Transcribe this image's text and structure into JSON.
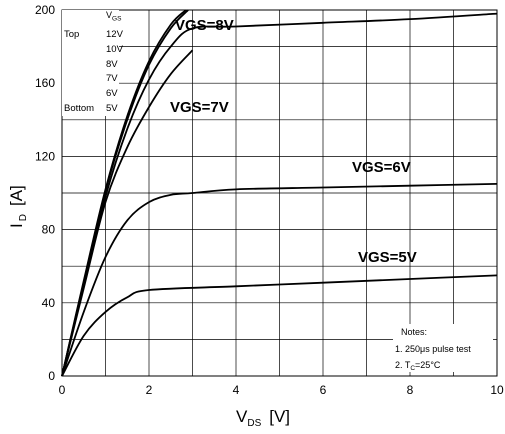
{
  "chart_data": {
    "type": "line",
    "xlabel": {
      "main": "V",
      "sub": "DS",
      "unit": "[V]"
    },
    "ylabel": {
      "main": "I",
      "sub": "D",
      "unit": "[A]"
    },
    "xlim": [
      0,
      10
    ],
    "ylim": [
      0,
      200
    ],
    "xticks": [
      0,
      2,
      4,
      6,
      8,
      10
    ],
    "yticks": [
      0,
      40,
      80,
      120,
      160,
      200
    ],
    "grid": true,
    "legend": {
      "header_main": "V",
      "header_sub": "GS",
      "top_label": "Top",
      "bottom_label": "Bottom",
      "entries": [
        "12V",
        "10V",
        "8V",
        "7V",
        "6V",
        "5V"
      ]
    },
    "annotations": [
      "VGS=8V",
      "VGS=7V",
      "VGS=6V",
      "VGS=5V"
    ],
    "notes": {
      "title": "Notes:",
      "line1": "1. 250μs pulse test",
      "line2_pre": "2. T",
      "line2_sub": "C",
      "line2_post": "=25°C"
    },
    "series": [
      {
        "name": "VGS=12V",
        "x": [
          0,
          0.5,
          1.0,
          1.5,
          2.0,
          2.5,
          2.85
        ],
        "y": [
          0,
          52,
          102,
          142,
          172,
          192,
          200
        ]
      },
      {
        "name": "VGS=10V",
        "x": [
          0,
          0.5,
          1.0,
          1.5,
          2.0,
          2.5,
          2.9
        ],
        "y": [
          0,
          51,
          101,
          140,
          170,
          190,
          200
        ]
      },
      {
        "name": "VGS=8V",
        "x": [
          0,
          0.5,
          1.0,
          1.5,
          2.0,
          2.5,
          3.0,
          4.0,
          6.0,
          8.0,
          10.0
        ],
        "y": [
          0,
          50,
          98,
          135,
          162,
          180,
          190,
          191,
          193,
          195,
          198
        ]
      },
      {
        "name": "VGS=7V",
        "x": [
          0,
          0.5,
          1.0,
          1.5,
          2.0,
          2.5,
          3.0
        ],
        "y": [
          0,
          48,
          95,
          125,
          147,
          165,
          178
        ]
      },
      {
        "name": "VGS=6V",
        "x": [
          0,
          0.5,
          1.0,
          1.5,
          2.0,
          2.5,
          3.0,
          4.0,
          6.0,
          8.0,
          10.0
        ],
        "y": [
          0,
          35,
          65,
          85,
          95,
          99,
          100,
          102,
          103,
          104,
          105
        ]
      },
      {
        "name": "VGS=5V",
        "x": [
          0,
          0.5,
          1.0,
          1.5,
          2.0,
          4.0,
          6.0,
          8.0,
          10.0
        ],
        "y": [
          0,
          22,
          35,
          43,
          47,
          49,
          51,
          53,
          55
        ]
      }
    ]
  }
}
